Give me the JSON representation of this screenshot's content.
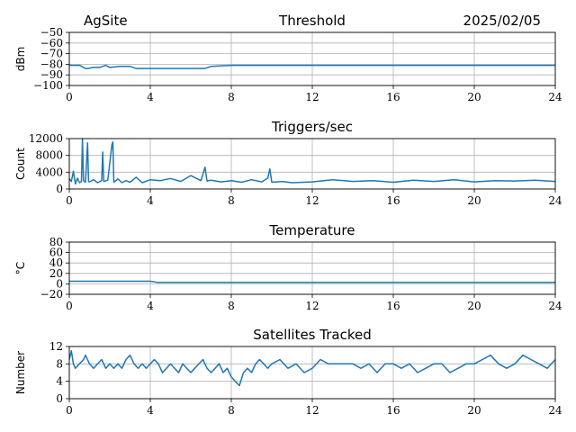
{
  "header": {
    "site": "AgSite",
    "date": "2025/02/05"
  },
  "colors": {
    "series": "#1f77b4",
    "grid": "#b0b0b0",
    "axes": "#000000"
  },
  "chart_data": [
    {
      "type": "line",
      "title": "Threshold",
      "ylabel": "dBm",
      "xlabel": "",
      "xlim": [
        0,
        24
      ],
      "ylim": [
        -100,
        -50
      ],
      "grid": true,
      "xticks": [
        0,
        4,
        8,
        12,
        16,
        20,
        24
      ],
      "yticks": [
        -100,
        -90,
        -80,
        -70,
        -60,
        -50
      ],
      "ytick_labels": [
        "−100",
        "−90",
        "−80",
        "−70",
        "−60",
        "−50"
      ],
      "series": [
        {
          "x": [
            0,
            0.5,
            0.8,
            0.9,
            1.2,
            1.5,
            1.8,
            2.0,
            2.5,
            3.0,
            3.3,
            3.5,
            4.0,
            5.0,
            6.0,
            6.7,
            7.0,
            8,
            10,
            12,
            14,
            16,
            18,
            20,
            22,
            24
          ],
          "y": [
            -81,
            -81,
            -84,
            -84,
            -83,
            -83,
            -81,
            -83,
            -82,
            -82,
            -84,
            -84,
            -84,
            -84,
            -84,
            -84,
            -82,
            -81,
            -81,
            -81,
            -81,
            -81,
            -81,
            -81,
            -81,
            -81
          ]
        }
      ]
    },
    {
      "type": "line",
      "title": "Triggers/sec",
      "ylabel": "Count",
      "xlabel": "",
      "xlim": [
        0,
        24
      ],
      "ylim": [
        0,
        12000
      ],
      "grid": true,
      "xticks": [
        0,
        4,
        8,
        12,
        16,
        20,
        24
      ],
      "yticks": [
        0,
        4000,
        8000,
        12000
      ],
      "ytick_labels": [
        "0",
        "4000",
        "8000",
        "12000"
      ],
      "series": [
        {
          "x": [
            0,
            0.1,
            0.2,
            0.3,
            0.4,
            0.5,
            0.6,
            0.65,
            0.7,
            0.8,
            0.9,
            0.95,
            1.0,
            1.2,
            1.4,
            1.6,
            1.65,
            1.7,
            1.9,
            2.1,
            2.15,
            2.2,
            2.4,
            2.6,
            2.8,
            3.0,
            3.3,
            3.6,
            4.0,
            4.5,
            5.0,
            5.5,
            6.0,
            6.5,
            6.7,
            6.8,
            7.0,
            7.5,
            8.0,
            8.5,
            9.0,
            9.5,
            9.8,
            9.9,
            10.0,
            10.5,
            11.0,
            12.0,
            13.0,
            14.0,
            15.0,
            16.0,
            17.0,
            18.0,
            19.0,
            20.0,
            21.0,
            22.0,
            23.0,
            24.0
          ],
          "y": [
            2500,
            1800,
            4200,
            1200,
            2600,
            1500,
            1800,
            12000,
            2000,
            1600,
            11000,
            1800,
            1700,
            2200,
            1500,
            2000,
            8800,
            1800,
            2100,
            10500,
            11200,
            1600,
            2400,
            1500,
            2000,
            1600,
            2800,
            1500,
            2200,
            2000,
            2500,
            1800,
            3200,
            2000,
            5200,
            1900,
            2100,
            1700,
            2000,
            1600,
            2200,
            1700,
            2600,
            4800,
            1600,
            1800,
            1500,
            1700,
            2200,
            1800,
            2000,
            1600,
            2100,
            1800,
            2200,
            1700,
            2000,
            1900,
            2100,
            1800
          ]
        }
      ]
    },
    {
      "type": "line",
      "title": "Temperature",
      "ylabel": "°C",
      "xlabel": "",
      "xlim": [
        0,
        24
      ],
      "ylim": [
        -20,
        80
      ],
      "grid": true,
      "xticks": [
        0,
        4,
        8,
        12,
        16,
        20,
        24
      ],
      "yticks": [
        -20,
        0,
        20,
        40,
        60,
        80
      ],
      "ytick_labels": [
        "−20",
        "0",
        "20",
        "40",
        "60",
        "80"
      ],
      "series": [
        {
          "x": [
            0,
            2,
            4,
            4.2,
            4.3,
            6,
            8,
            12,
            16,
            20,
            24
          ],
          "y": [
            5,
            5,
            5,
            4,
            3,
            3,
            3,
            3,
            3,
            3,
            3
          ]
        }
      ]
    },
    {
      "type": "line",
      "title": "Satellites Tracked",
      "ylabel": "Number",
      "xlabel": "",
      "xlim": [
        0,
        24
      ],
      "ylim": [
        0,
        12
      ],
      "grid": true,
      "xticks": [
        0,
        4,
        8,
        12,
        16,
        20,
        24
      ],
      "yticks": [
        0,
        4,
        8,
        12
      ],
      "ytick_labels": [
        "0",
        "4",
        "8",
        "12"
      ],
      "series": [
        {
          "x": [
            0,
            0.1,
            0.2,
            0.3,
            0.5,
            0.7,
            0.8,
            1.0,
            1.2,
            1.4,
            1.6,
            1.8,
            2.0,
            2.2,
            2.4,
            2.6,
            2.8,
            3.0,
            3.2,
            3.4,
            3.6,
            3.8,
            4.0,
            4.2,
            4.4,
            4.6,
            4.8,
            5.0,
            5.2,
            5.4,
            5.6,
            5.8,
            6.0,
            6.2,
            6.4,
            6.6,
            6.8,
            7.0,
            7.2,
            7.4,
            7.6,
            7.8,
            8.0,
            8.2,
            8.4,
            8.6,
            8.8,
            9.0,
            9.2,
            9.4,
            9.6,
            9.8,
            10.0,
            10.4,
            10.8,
            11.2,
            11.6,
            12.0,
            12.4,
            12.8,
            13.2,
            13.6,
            14.0,
            14.4,
            14.8,
            15.2,
            15.6,
            16.0,
            16.4,
            16.8,
            17.2,
            17.6,
            18.0,
            18.4,
            18.8,
            19.2,
            19.6,
            20.0,
            20.4,
            20.8,
            21.2,
            21.6,
            22.0,
            22.4,
            22.8,
            23.2,
            23.6,
            24.0
          ],
          "y": [
            9,
            11,
            8,
            7,
            8,
            9,
            10,
            8,
            7,
            8,
            9,
            7,
            8,
            7,
            8,
            7,
            9,
            10,
            8,
            7,
            8,
            7,
            8,
            9,
            8,
            6,
            7,
            8,
            7,
            6,
            8,
            7,
            6,
            7,
            8,
            9,
            7,
            6,
            7,
            8,
            6,
            7,
            5,
            4,
            3,
            6,
            7,
            6,
            8,
            9,
            8,
            7,
            8,
            9,
            7,
            8,
            6,
            7,
            9,
            8,
            8,
            8,
            8,
            7,
            8,
            6,
            8,
            8,
            7,
            8,
            6,
            7,
            8,
            8,
            6,
            7,
            8,
            8,
            9,
            10,
            8,
            7,
            8,
            10,
            9,
            8,
            7,
            9
          ]
        }
      ]
    }
  ]
}
